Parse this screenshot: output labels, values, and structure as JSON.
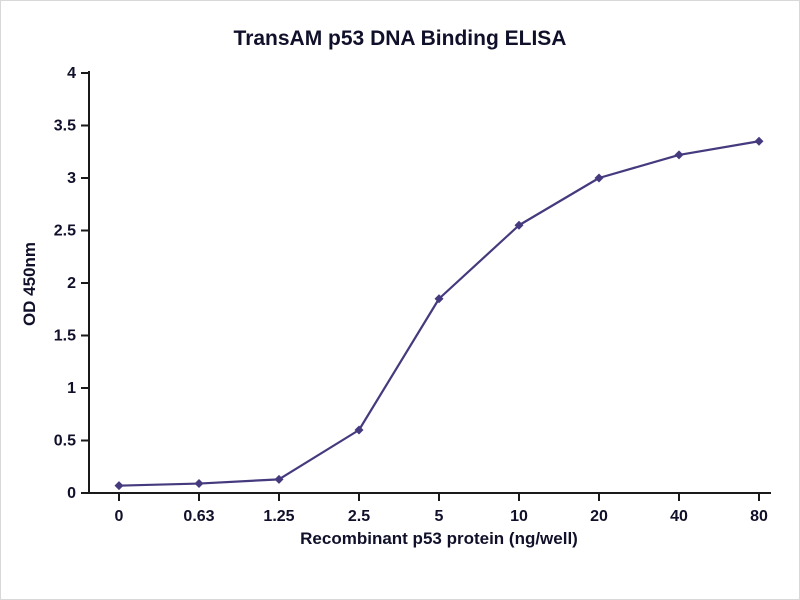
{
  "page": {
    "background": "#ffffff",
    "border_color": "#d8d8d8"
  },
  "chart_data": {
    "type": "line",
    "title": "TransAM p53 DNA Binding ELISA",
    "xlabel": "Recombinant p53 protein (ng/well)",
    "ylabel": "OD 450nm",
    "categories": [
      "0",
      "0.63",
      "1.25",
      "2.5",
      "5",
      "10",
      "20",
      "40",
      "80"
    ],
    "values": [
      0.07,
      0.09,
      0.13,
      0.6,
      1.85,
      2.55,
      3.0,
      3.22,
      3.35
    ],
    "series_name": "OD 450nm",
    "ylim": [
      0,
      4
    ],
    "ytick_step": 0.5,
    "grid": false,
    "legend": false,
    "line_color": "#453a7e",
    "marker": "diamond",
    "axis_color": "#1a1a1a",
    "text_color": "#10102a"
  }
}
